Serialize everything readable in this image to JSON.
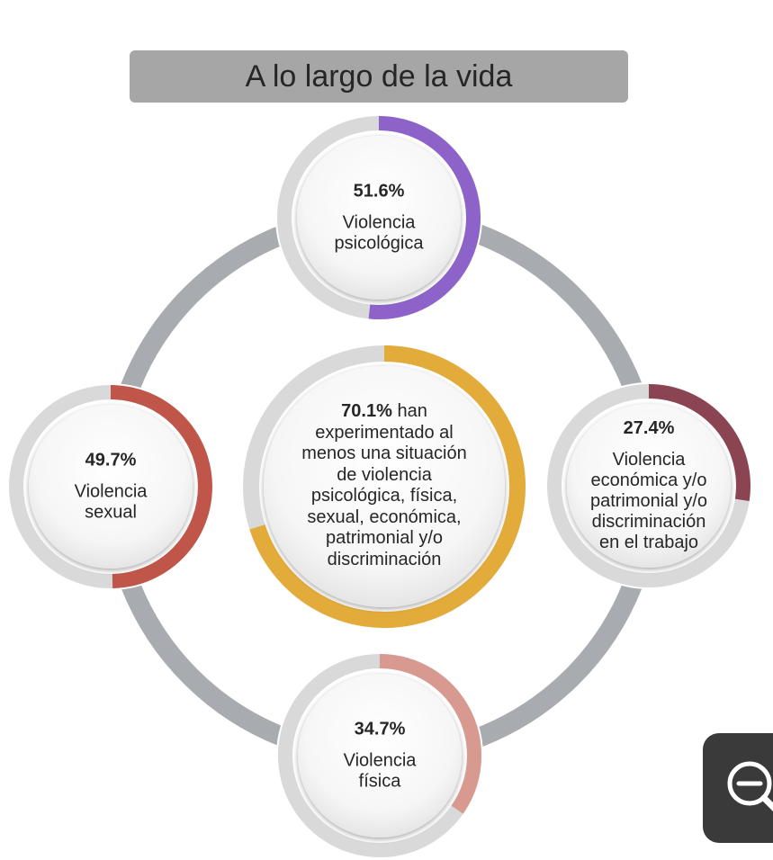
{
  "title": "A lo largo de la vida",
  "chart_data": {
    "type": "pie",
    "center": {
      "value": 70.1,
      "value_label": "70.1%",
      "label": "han experimentado al menos una situación de violencia psicológica, física, sexual, económica, patrimonial y/o discriminación",
      "color": "#e3ab3a"
    },
    "series": [
      {
        "name": "Violencia psicológica",
        "value": 51.6,
        "value_label": "51.6%",
        "display_label": "Violencia\npsicológica",
        "color": "#8d63c9",
        "position": "top"
      },
      {
        "name": "Violencia económica y/o patrimonial y/o discriminación en el trabajo",
        "value": 27.4,
        "value_label": "27.4%",
        "display_label": "Violencia\neconómica y/o\npatrimonial y/o\ndiscriminación\nen el trabajo",
        "color": "#8b4452",
        "position": "right"
      },
      {
        "name": "Violencia física",
        "value": 34.7,
        "value_label": "34.7%",
        "display_label": "Violencia\nfísica",
        "color": "#d89a90",
        "position": "bottom"
      },
      {
        "name": "Violencia sexual",
        "value": 49.7,
        "value_label": "49.7%",
        "display_label": "Violencia\nsexual",
        "color": "#c0564a",
        "position": "left"
      }
    ],
    "track_color": "#d9d9d9",
    "connector_color": "#a8abb0"
  },
  "controls": {
    "zoom_icon": "zoom-out-icon"
  }
}
